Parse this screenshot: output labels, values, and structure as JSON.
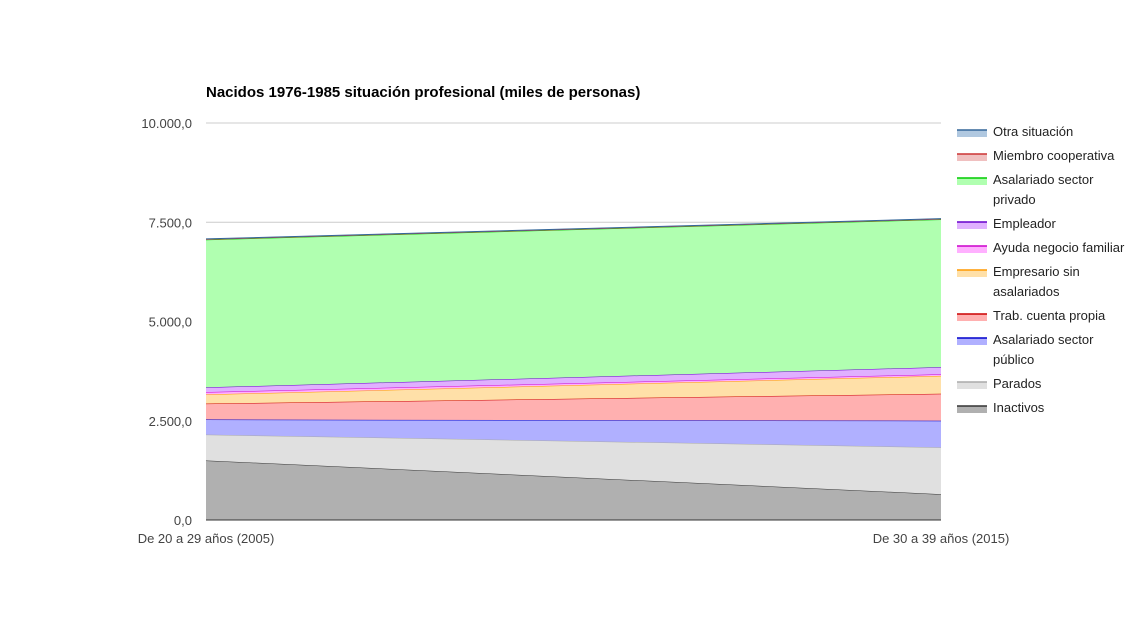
{
  "chart_data": {
    "type": "area",
    "stacked": true,
    "title": "Nacidos 1976-1985 situación profesional (miles de personas)",
    "xlabel": "",
    "ylabel": "",
    "categories": [
      "De 20 a 29 años (2005)",
      "De 30 a 39 años (2015)"
    ],
    "ylim": [
      0,
      10000
    ],
    "yticks": [
      "0,0",
      "2.500,0",
      "5.000,0",
      "7.500,0",
      "10.000,0"
    ],
    "ytick_values": [
      0,
      2500,
      5000,
      7500,
      10000
    ],
    "grid": true,
    "legend_position": "right",
    "series": [
      {
        "name": "Inactivos",
        "values": [
          1500,
          650
        ],
        "color": "#b0b0b0",
        "line": "#333333"
      },
      {
        "name": "Parados",
        "values": [
          650,
          1180
        ],
        "color": "#e0e0e0",
        "line": "#aaaaaa"
      },
      {
        "name": "Asalariado sector público",
        "values": [
          380,
          670
        ],
        "color": "#b0b0ff",
        "line": "#0000cc"
      },
      {
        "name": "Trab. cuenta propia",
        "values": [
          400,
          680
        ],
        "color": "#ffb0b0",
        "line": "#cc0000"
      },
      {
        "name": "Empresario sin asalariados",
        "values": [
          230,
          450
        ],
        "color": "#ffe0a8",
        "line": "#ff9900"
      },
      {
        "name": "Ayuda negocio familiar",
        "values": [
          60,
          40
        ],
        "color": "#ffb0ff",
        "line": "#cc00cc"
      },
      {
        "name": "Empleador",
        "values": [
          120,
          180
        ],
        "color": "#e0b0ff",
        "line": "#6600cc"
      },
      {
        "name": "Asalariado sector privado",
        "values": [
          3720,
          3720
        ],
        "color": "#b0ffb0",
        "line": "#00cc00"
      },
      {
        "name": "Miembro cooperativa",
        "values": [
          10,
          10
        ],
        "color": "#f0c0c0",
        "line": "#cc3333"
      },
      {
        "name": "Otra situación",
        "values": [
          10,
          10
        ],
        "color": "#b0c8e0",
        "line": "#336699"
      }
    ]
  }
}
